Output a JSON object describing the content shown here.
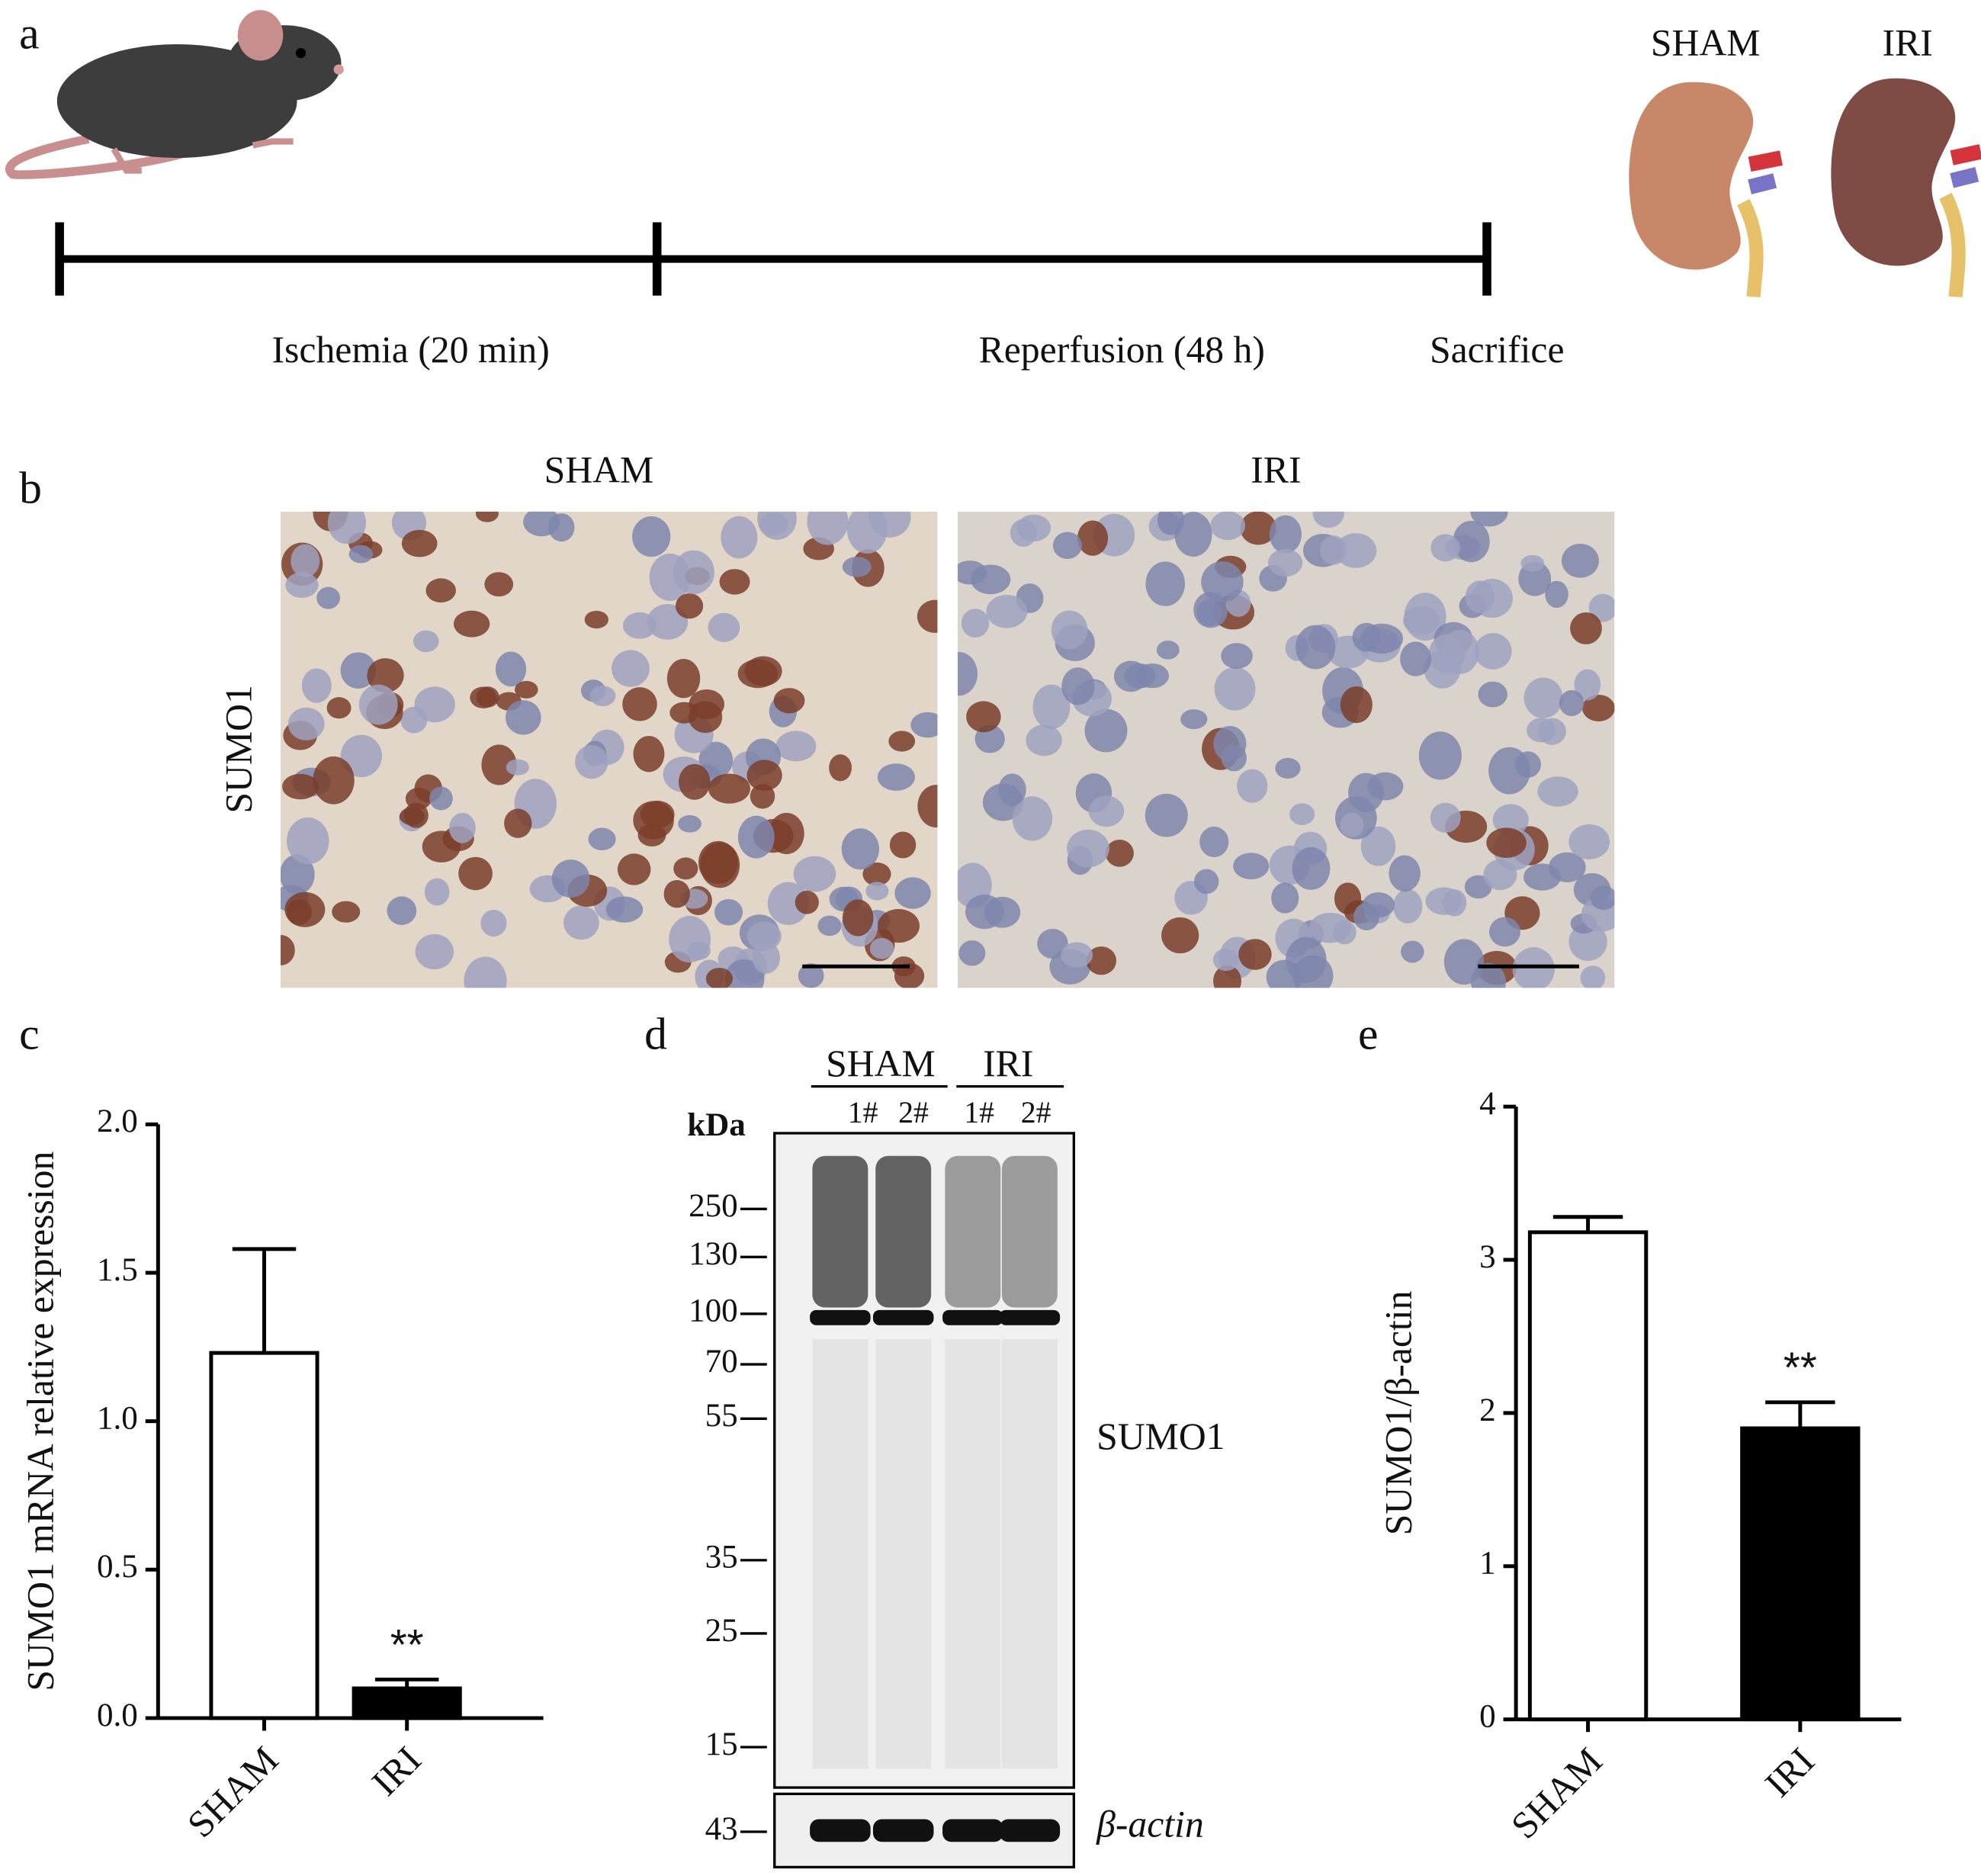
{
  "panel_labels": [
    "a",
    "b",
    "c",
    "d",
    "e"
  ],
  "timeline": {
    "phases": [
      "Ischemia (20 min)",
      "Reperfusion (48 h)",
      "Sacrifice"
    ],
    "kidney_labels": [
      "SHAM",
      "IRI"
    ]
  },
  "histology": {
    "columns": [
      "SHAM",
      "IRI"
    ],
    "row_label": "SUMO1"
  },
  "blot": {
    "groups": [
      "SHAM",
      "IRI"
    ],
    "lanes": [
      "1#",
      "2#",
      "1#",
      "2#"
    ],
    "unit": "kDa",
    "markers": [
      "250",
      "130",
      "100",
      "70",
      "55",
      "35",
      "25",
      "15"
    ],
    "loading_marker": "43",
    "target": "SUMO1",
    "loading_control": "β-actin"
  },
  "chart_data": [
    {
      "type": "bar",
      "y_label": "SUMO1 mRNA relative expression",
      "categories": [
        "SHAM",
        "IRI"
      ],
      "values": [
        1.23,
        0.1
      ],
      "errors": [
        0.35,
        0.03
      ],
      "colors": [
        "#ffffff",
        "#000000"
      ],
      "ylim": [
        0,
        2
      ],
      "yticks": [
        {
          "value": 0,
          "label": "0.0"
        },
        0.5,
        {
          "value": 1,
          "label": "1.0"
        },
        1.5,
        {
          "value": 2,
          "label": "2.0"
        }
      ],
      "annotation": {
        "text": "**",
        "category": "IRI"
      }
    },
    {
      "type": "bar",
      "y_label": "SUMO1/β-actin",
      "categories": [
        "SHAM",
        "IRI"
      ],
      "values": [
        3.18,
        1.9
      ],
      "errors": [
        0.1,
        0.17
      ],
      "colors": [
        "#ffffff",
        "#000000"
      ],
      "ylim": [
        0,
        4
      ],
      "yticks": [
        0,
        1,
        2,
        3,
        4
      ],
      "annotation": {
        "text": "**",
        "category": "IRI"
      }
    }
  ]
}
